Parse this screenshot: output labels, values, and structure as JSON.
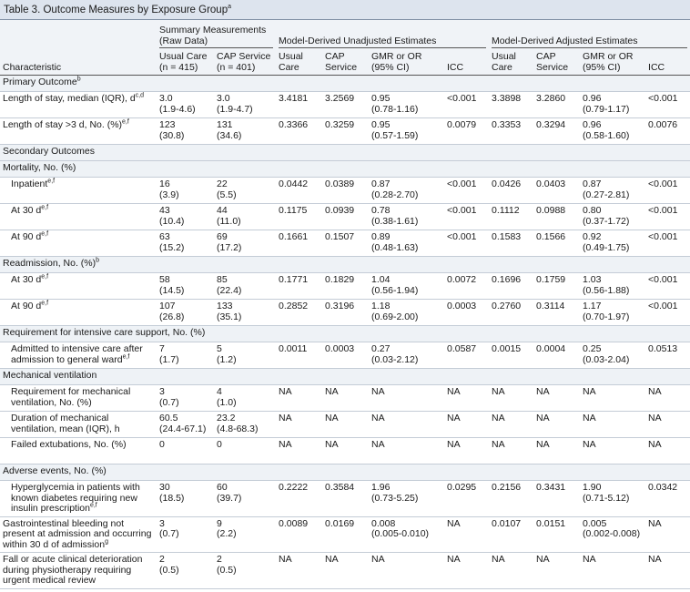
{
  "title": {
    "text": "Table 3. Outcome Measures by Exposure Group",
    "sup": "a"
  },
  "groups": [
    "Summary Measurements (Raw Data)",
    "Model-Derived Unadjusted Estimates",
    "Model-Derived Adjusted Estimates"
  ],
  "columns": [
    "Characteristic",
    "Usual Care\n(n = 415)",
    "CAP Service\n(n = 401)",
    "Usual\nCare",
    "CAP\nService",
    "GMR or OR\n(95% CI)",
    "ICC",
    "Usual\nCare",
    "CAP\nService",
    "GMR or OR\n(95% CI)",
    "ICC"
  ],
  "rows": [
    {
      "section": "Primary Outcome",
      "sup": "b"
    },
    {
      "label": "Length of stay, median (IQR), d",
      "sup": "c,d",
      "cells": [
        "3.0\n(1.9-4.6)",
        "3.0\n(1.9-4.7)",
        "3.4181",
        "3.2569",
        "0.95\n(0.78-1.16)",
        "<0.001",
        "3.3898",
        "3.2860",
        "0.96\n(0.79-1.17)",
        "<0.001"
      ]
    },
    {
      "label": "Length of stay >3 d, No. (%)",
      "sup": "e,f",
      "cells": [
        "123\n(30.8)",
        "131\n(34.6)",
        "0.3366",
        "0.3259",
        "0.95\n(0.57-1.59)",
        "0.0079",
        "0.3353",
        "0.3294",
        "0.96\n(0.58-1.60)",
        "0.0076"
      ]
    },
    {
      "section": "Secondary Outcomes"
    },
    {
      "section": "Mortality, No. (%)"
    },
    {
      "label": "Inpatient",
      "sup": "e,f",
      "indent": true,
      "cells": [
        "16\n(3.9)",
        "22\n(5.5)",
        "0.0442",
        "0.0389",
        "0.87\n(0.28-2.70)",
        "<0.001",
        "0.0426",
        "0.0403",
        "0.87\n(0.27-2.81)",
        "<0.001"
      ]
    },
    {
      "label": "At 30 d",
      "sup": "e,f",
      "indent": true,
      "cells": [
        "43\n(10.4)",
        "44\n(11.0)",
        "0.1175",
        "0.0939",
        "0.78\n(0.38-1.61)",
        "<0.001",
        "0.1112",
        "0.0988",
        "0.80\n(0.37-1.72)",
        "<0.001"
      ]
    },
    {
      "label": "At 90 d",
      "sup": "e,f",
      "indent": true,
      "cells": [
        "63\n(15.2)",
        "69\n(17.2)",
        "0.1661",
        "0.1507",
        "0.89\n(0.48-1.63)",
        "<0.001",
        "0.1583",
        "0.1566",
        "0.92\n(0.49-1.75)",
        "<0.001"
      ]
    },
    {
      "section": "Readmission, No. (%)",
      "sup": "b"
    },
    {
      "label": "At 30 d",
      "sup": "e,f",
      "indent": true,
      "cells": [
        "58\n(14.5)",
        "85\n(22.4)",
        "0.1771",
        "0.1829",
        "1.04\n(0.56-1.94)",
        "0.0072",
        "0.1696",
        "0.1759",
        "1.03\n(0.56-1.88)",
        "<0.001"
      ]
    },
    {
      "label": "At 90 d",
      "sup": "e,f",
      "indent": true,
      "cells": [
        "107\n(26.8)",
        "133\n(35.1)",
        "0.2852",
        "0.3196",
        "1.18\n(0.69-2.00)",
        "0.0003",
        "0.2760",
        "0.3114",
        "1.17\n(0.70-1.97)",
        "<0.001"
      ]
    },
    {
      "section": "Requirement for intensive care support, No. (%)"
    },
    {
      "label": "Admitted to intensive care after admission to general ward",
      "sup": "e,f",
      "indent": true,
      "cells": [
        "7\n(1.7)",
        "5\n(1.2)",
        "0.0011",
        "0.0003",
        "0.27\n(0.03-2.12)",
        "0.0587",
        "0.0015",
        "0.0004",
        "0.25\n(0.03-2.04)",
        "0.0513"
      ]
    },
    {
      "section": "Mechanical ventilation"
    },
    {
      "label": "Requirement for mechanical ventilation, No. (%)",
      "indent": true,
      "cells": [
        "3\n(0.7)",
        "4\n(1.0)",
        "NA",
        "NA",
        "NA",
        "NA",
        "NA",
        "NA",
        "NA",
        "NA"
      ]
    },
    {
      "label": "Duration of mechanical ventilation, mean (IQR), h",
      "indent": true,
      "cells": [
        "60.5\n(24.4-67.1)",
        "23.2\n(4.8-68.3)",
        "NA",
        "NA",
        "NA",
        "NA",
        "NA",
        "NA",
        "NA",
        "NA"
      ]
    },
    {
      "label": "Failed extubations, No. (%)",
      "indent": true,
      "cells": [
        "0",
        "0",
        "NA",
        "NA",
        "NA",
        "NA",
        "NA",
        "NA",
        "NA",
        "NA"
      ]
    },
    {
      "section": "Adverse events, No. (%)"
    },
    {
      "label": "Hyperglycemia in patients with known diabetes requiring new insulin prescription",
      "sup": "e,f",
      "indent": true,
      "cells": [
        "30\n(18.5)",
        "60\n(39.7)",
        "0.2222",
        "0.3584",
        "1.96\n(0.73-5.25)",
        "0.0295",
        "0.2156",
        "0.3431",
        "1.90\n(0.71-5.12)",
        "0.0342"
      ]
    },
    {
      "label": "Gastrointestinal bleeding not present at admission and occurring within 30 d of admission",
      "sup": "g",
      "cells": [
        "3\n(0.7)",
        "9\n(2.2)",
        "0.0089",
        "0.0169",
        "0.008\n(0.005-0.010)",
        "NA",
        "0.0107",
        "0.0151",
        "0.005\n(0.002-0.008)",
        "NA"
      ]
    },
    {
      "label": "Fall or acute clinical deterioration during physiotherapy requiring urgent medical review",
      "cells": [
        "2\n(0.5)",
        "2\n(0.5)",
        "NA",
        "NA",
        "NA",
        "NA",
        "NA",
        "NA",
        "NA",
        "NA"
      ]
    }
  ]
}
